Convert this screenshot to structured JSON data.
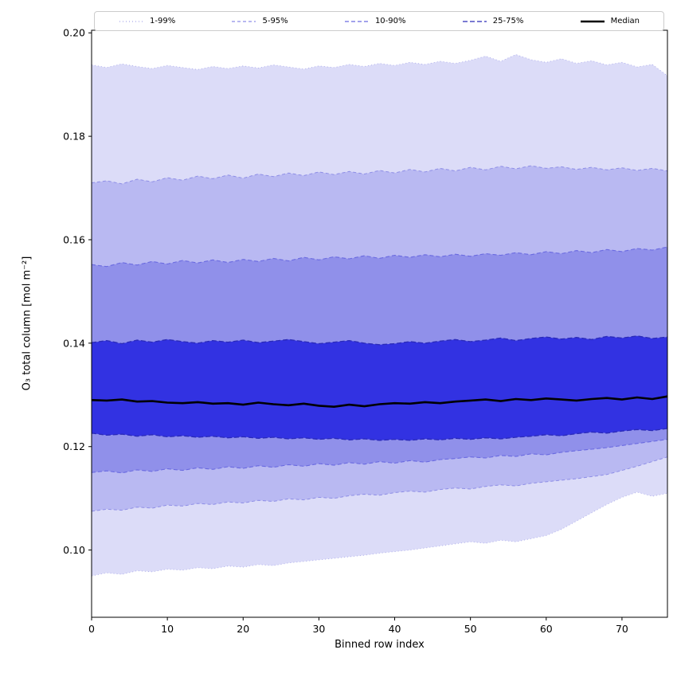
{
  "chart_data": {
    "type": "area",
    "title": "",
    "xlabel": "Binned row index",
    "ylabel": "O₃ total column [mol m⁻²]",
    "xlim": [
      0,
      76
    ],
    "ylim": [
      0.087,
      0.2005
    ],
    "grid": false,
    "legend_position": "top",
    "xticks": [
      {
        "v": 0,
        "label": "0"
      },
      {
        "v": 10,
        "label": "10"
      },
      {
        "v": 20,
        "label": "20"
      },
      {
        "v": 30,
        "label": "30"
      },
      {
        "v": 40,
        "label": "40"
      },
      {
        "v": 50,
        "label": "50"
      },
      {
        "v": 60,
        "label": "60"
      },
      {
        "v": 70,
        "label": "70"
      }
    ],
    "yticks": [
      {
        "v": 0.1,
        "label": "0.10"
      },
      {
        "v": 0.12,
        "label": "0.12"
      },
      {
        "v": 0.14,
        "label": "0.14"
      },
      {
        "v": 0.16,
        "label": "0.16"
      },
      {
        "v": 0.18,
        "label": "0.18"
      },
      {
        "v": 0.2,
        "label": "0.20"
      }
    ],
    "x": [
      0,
      2,
      4,
      6,
      8,
      10,
      12,
      14,
      16,
      18,
      20,
      22,
      24,
      26,
      28,
      30,
      32,
      34,
      36,
      38,
      40,
      42,
      44,
      46,
      48,
      50,
      52,
      54,
      56,
      58,
      60,
      62,
      64,
      66,
      68,
      70,
      72,
      74,
      76
    ],
    "series": {
      "p1": [
        0.095,
        0.0956,
        0.0953,
        0.096,
        0.0958,
        0.0963,
        0.0961,
        0.0966,
        0.0964,
        0.0969,
        0.0967,
        0.0972,
        0.097,
        0.0975,
        0.0978,
        0.0981,
        0.0984,
        0.0987,
        0.099,
        0.0994,
        0.0997,
        0.1,
        0.1004,
        0.1008,
        0.1012,
        0.1016,
        0.1013,
        0.1019,
        0.1016,
        0.1022,
        0.1028,
        0.104,
        0.1056,
        0.1072,
        0.1088,
        0.1102,
        0.1112,
        0.1104,
        0.111
      ],
      "p5": [
        0.1075,
        0.1079,
        0.1077,
        0.1083,
        0.1081,
        0.1087,
        0.1085,
        0.109,
        0.1088,
        0.1093,
        0.1091,
        0.1096,
        0.1094,
        0.1099,
        0.1097,
        0.1102,
        0.11,
        0.1105,
        0.1108,
        0.1106,
        0.1111,
        0.1114,
        0.1112,
        0.1117,
        0.112,
        0.1118,
        0.1123,
        0.1126,
        0.1124,
        0.1129,
        0.1132,
        0.1135,
        0.1138,
        0.1142,
        0.1146,
        0.1154,
        0.1162,
        0.1171,
        0.118
      ],
      "p10": [
        0.115,
        0.1153,
        0.1149,
        0.1155,
        0.1152,
        0.1157,
        0.1154,
        0.1159,
        0.1156,
        0.1161,
        0.1158,
        0.1163,
        0.116,
        0.1165,
        0.1162,
        0.1167,
        0.1164,
        0.1169,
        0.1166,
        0.1171,
        0.1168,
        0.1173,
        0.117,
        0.1175,
        0.1177,
        0.118,
        0.1178,
        0.1183,
        0.1181,
        0.1186,
        0.1184,
        0.1189,
        0.1192,
        0.1195,
        0.1198,
        0.1202,
        0.1206,
        0.121,
        0.1214
      ],
      "p25": [
        0.1226,
        0.1222,
        0.1224,
        0.122,
        0.1223,
        0.1219,
        0.1221,
        0.1218,
        0.122,
        0.1217,
        0.1219,
        0.1216,
        0.1218,
        0.1215,
        0.1217,
        0.1214,
        0.1216,
        0.1213,
        0.1215,
        0.1212,
        0.1214,
        0.1212,
        0.1215,
        0.1213,
        0.1216,
        0.1214,
        0.1217,
        0.1215,
        0.1218,
        0.122,
        0.1223,
        0.1221,
        0.1225,
        0.1228,
        0.1226,
        0.123,
        0.1233,
        0.1231,
        0.1235
      ],
      "p50": [
        0.129,
        0.1289,
        0.1291,
        0.1287,
        0.1288,
        0.1285,
        0.1284,
        0.1286,
        0.1283,
        0.1284,
        0.1281,
        0.1285,
        0.1282,
        0.128,
        0.1283,
        0.1279,
        0.1277,
        0.1281,
        0.1278,
        0.1282,
        0.1284,
        0.1283,
        0.1286,
        0.1284,
        0.1287,
        0.1289,
        0.1291,
        0.1288,
        0.1292,
        0.129,
        0.1293,
        0.1291,
        0.1289,
        0.1292,
        0.1294,
        0.1291,
        0.1295,
        0.1292,
        0.1297
      ],
      "p75": [
        0.1401,
        0.1405,
        0.1399,
        0.1406,
        0.1402,
        0.1407,
        0.1403,
        0.14,
        0.1405,
        0.1402,
        0.1406,
        0.1401,
        0.1404,
        0.1407,
        0.1403,
        0.1399,
        0.1402,
        0.1405,
        0.14,
        0.1397,
        0.1399,
        0.1403,
        0.14,
        0.1404,
        0.1407,
        0.1403,
        0.1406,
        0.141,
        0.1405,
        0.1409,
        0.1412,
        0.1408,
        0.1411,
        0.1407,
        0.1413,
        0.141,
        0.1414,
        0.1409,
        0.1412
      ],
      "p90": [
        0.1552,
        0.1548,
        0.1556,
        0.1551,
        0.1558,
        0.1553,
        0.156,
        0.1555,
        0.1561,
        0.1556,
        0.1562,
        0.1558,
        0.1564,
        0.1559,
        0.1566,
        0.1561,
        0.1567,
        0.1563,
        0.1569,
        0.1564,
        0.157,
        0.1566,
        0.1571,
        0.1567,
        0.1572,
        0.1568,
        0.1573,
        0.157,
        0.1575,
        0.1571,
        0.1577,
        0.1573,
        0.1579,
        0.1575,
        0.1581,
        0.1577,
        0.1583,
        0.158,
        0.1586
      ],
      "p95": [
        0.171,
        0.1714,
        0.1708,
        0.1717,
        0.1712,
        0.172,
        0.1715,
        0.1723,
        0.1718,
        0.1725,
        0.1719,
        0.1727,
        0.1722,
        0.1729,
        0.1724,
        0.1731,
        0.1726,
        0.1732,
        0.1727,
        0.1734,
        0.1729,
        0.1736,
        0.1731,
        0.1738,
        0.1733,
        0.174,
        0.1735,
        0.1742,
        0.1737,
        0.1743,
        0.1738,
        0.1741,
        0.1736,
        0.174,
        0.1735,
        0.1739,
        0.1734,
        0.1738,
        0.1733
      ],
      "p99": [
        0.1938,
        0.1933,
        0.194,
        0.1935,
        0.1931,
        0.1937,
        0.1933,
        0.1929,
        0.1935,
        0.1931,
        0.1936,
        0.1932,
        0.1938,
        0.1934,
        0.193,
        0.1936,
        0.1933,
        0.1939,
        0.1935,
        0.1941,
        0.1937,
        0.1943,
        0.1939,
        0.1945,
        0.1941,
        0.1947,
        0.1955,
        0.1945,
        0.1958,
        0.1948,
        0.1943,
        0.195,
        0.1941,
        0.1946,
        0.1938,
        0.1943,
        0.1934,
        0.1939,
        0.1917
      ]
    },
    "bands": [
      {
        "label": "1-99%",
        "lower": "p1",
        "upper": "p99",
        "fill": "#dcdcf8",
        "edge": "#a8a8ea",
        "dash": "1 3",
        "edge_width": 0.9
      },
      {
        "label": "5-95%",
        "lower": "p5",
        "upper": "p95",
        "fill": "#b9b9f2",
        "edge": "#8e8ee6",
        "dash": "4 3",
        "edge_width": 1
      },
      {
        "label": "10-90%",
        "lower": "p10",
        "upper": "p90",
        "fill": "#9090ea",
        "edge": "#6a6ae0",
        "dash": "5 3",
        "edge_width": 1.1
      },
      {
        "label": "25-75%",
        "lower": "p25",
        "upper": "p75",
        "fill": "#3232e2",
        "edge": "#2a2ab8",
        "dash": "6 3",
        "edge_width": 1.3
      }
    ],
    "median": {
      "label": "Median",
      "series": "p50",
      "color": "#000000",
      "width": 2.6
    }
  }
}
